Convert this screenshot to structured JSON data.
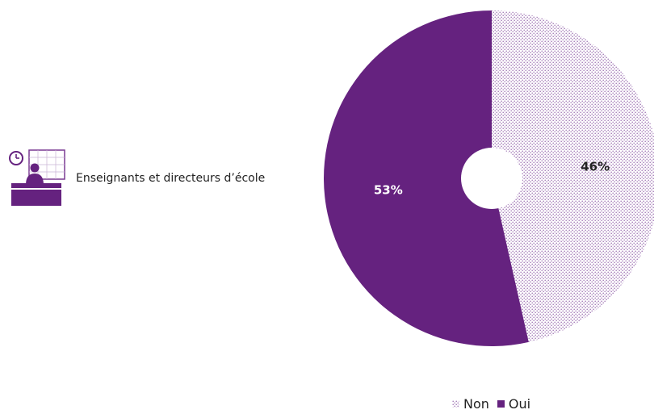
{
  "category_label": "Enseignants et directeurs d’école",
  "icon": "teacher-at-desk-icon",
  "colors": {
    "oui": "#65227f",
    "non_dots": "#9a6db0",
    "text_dark": "#222222"
  },
  "chart_data": {
    "type": "pie",
    "title": "",
    "donut": true,
    "categories": [
      "Non",
      "Oui"
    ],
    "values": [
      46,
      53
    ],
    "data_labels": [
      "46%",
      "53%"
    ],
    "unit": "%",
    "legend": {
      "placement": "bottom-right",
      "entries": [
        "Non",
        "Oui"
      ]
    },
    "styles": {
      "Non": "dotted",
      "Oui": "solid"
    }
  }
}
